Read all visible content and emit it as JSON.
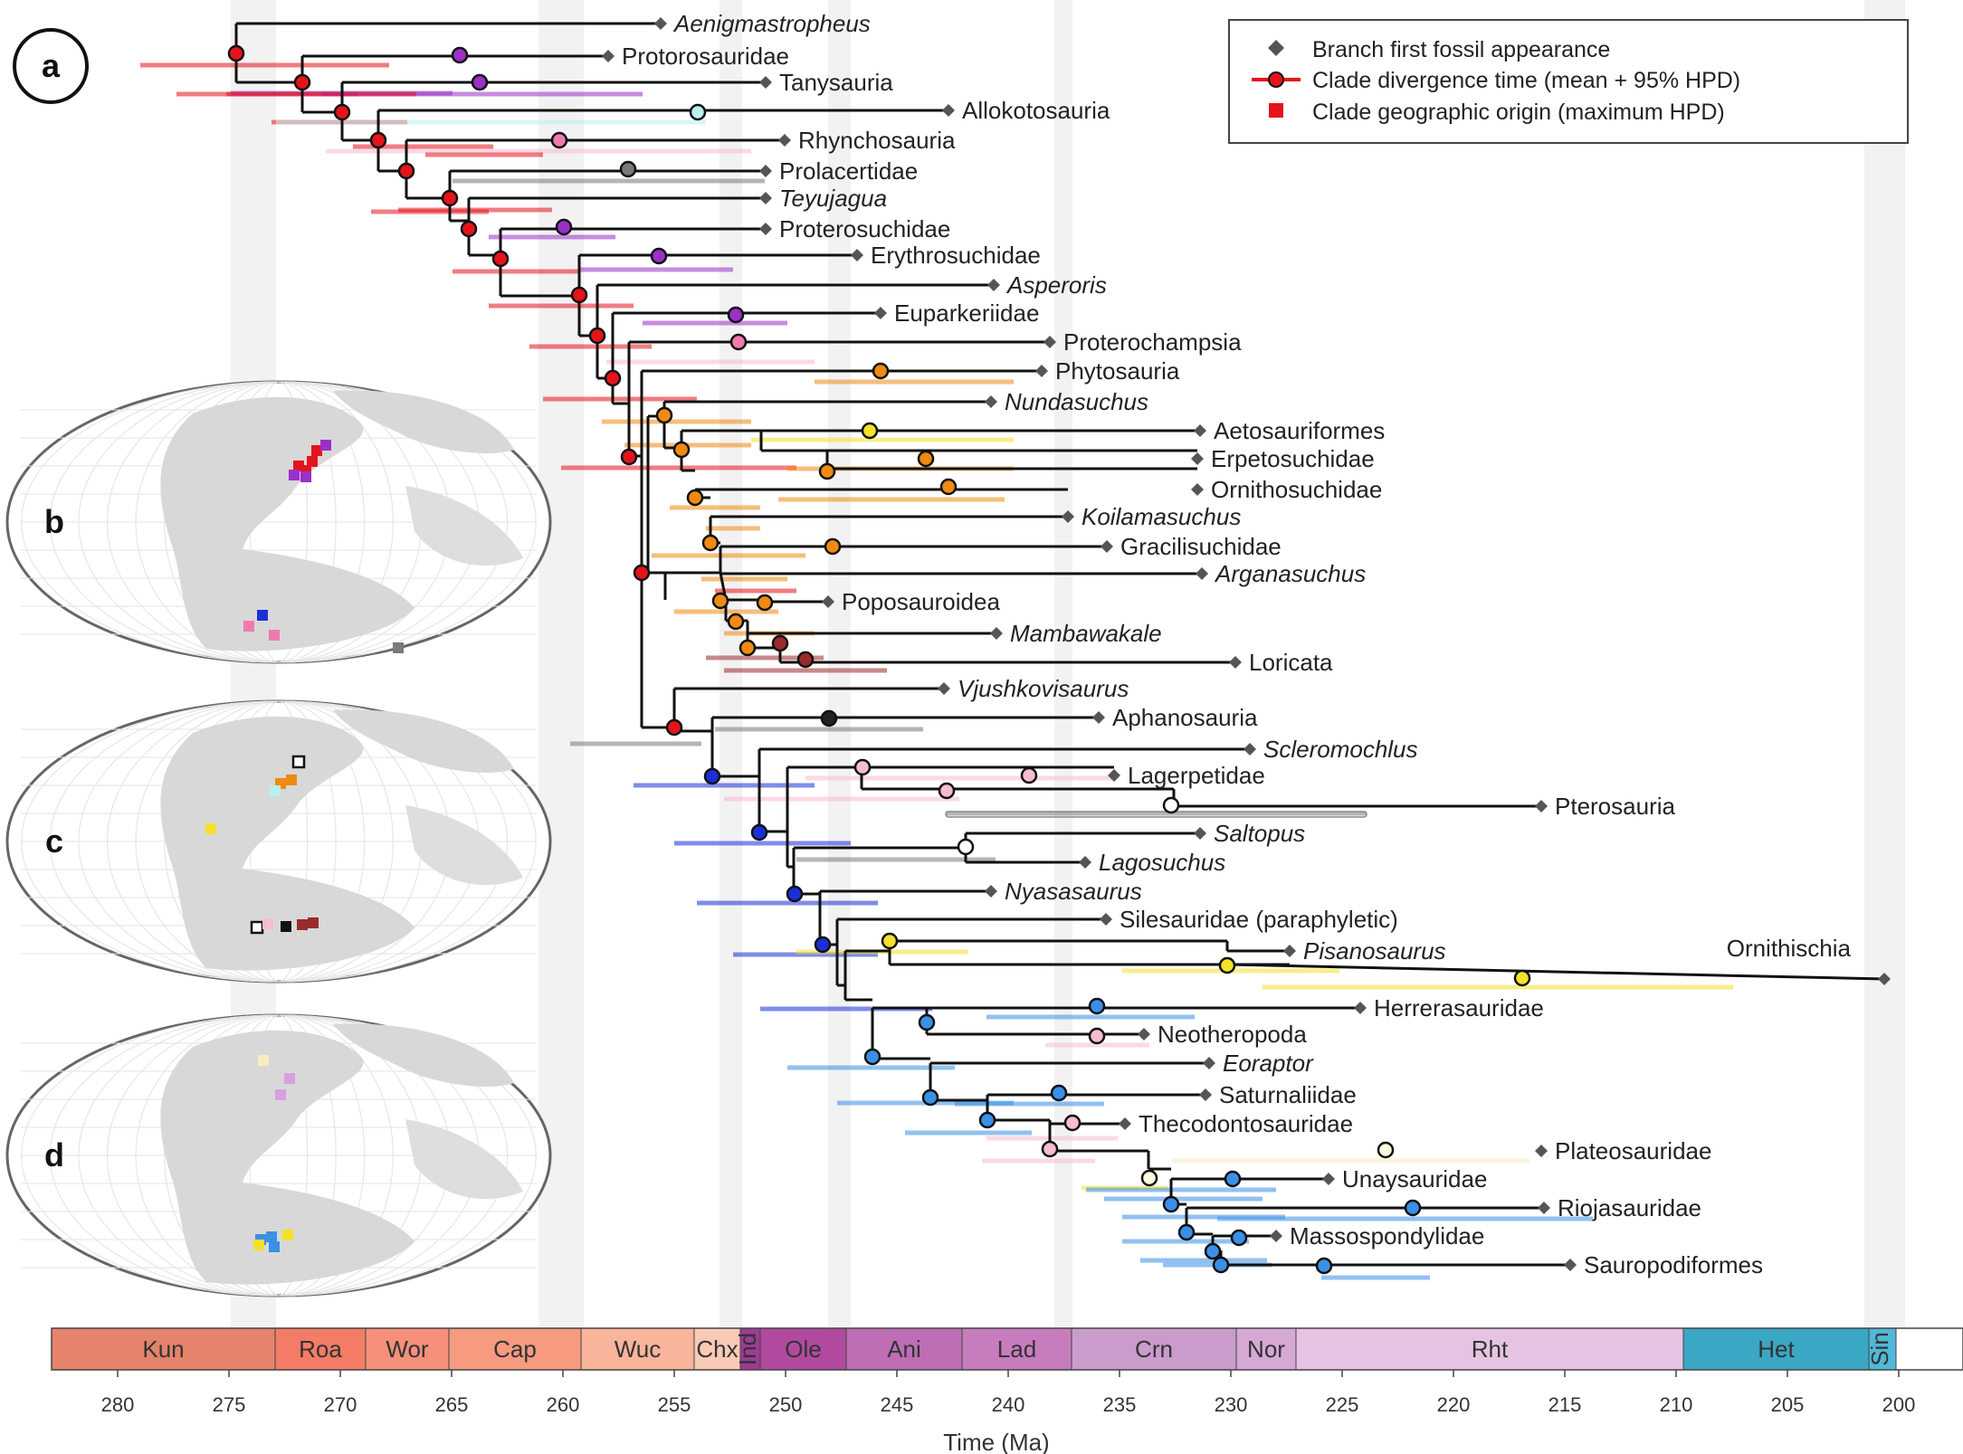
{
  "panels": {
    "a": "a",
    "b": "b",
    "c": "c",
    "d": "d"
  },
  "legend": {
    "fossil": "Branch first fossil appearance",
    "divergence": "Clade divergence time (mean + 95% HPD)",
    "origin": "Clade geographic origin (maximum HPD)"
  },
  "axis": {
    "title": "Time (Ma)",
    "ticks": [
      "280",
      "275",
      "270",
      "265",
      "260",
      "255",
      "250",
      "245",
      "240",
      "235",
      "230",
      "225",
      "220",
      "215",
      "210",
      "205",
      "200"
    ]
  },
  "periods": [
    {
      "label": "Kun",
      "color": "#e5836c"
    },
    {
      "label": "Roa",
      "color": "#f47c66"
    },
    {
      "label": "Wor",
      "color": "#f6907a"
    },
    {
      "label": "Cap",
      "color": "#f69a80"
    },
    {
      "label": "Wuc",
      "color": "#f9b49c"
    },
    {
      "label": "Chx",
      "color": "#fbcab6"
    },
    {
      "label": "Ind",
      "color": "#9d3b94"
    },
    {
      "label": "Ole",
      "color": "#b14a9e"
    },
    {
      "label": "Ani",
      "color": "#bd6eb4"
    },
    {
      "label": "Lad",
      "color": "#c77dbd"
    },
    {
      "label": "Crn",
      "color": "#c99ccb"
    },
    {
      "label": "Nor",
      "color": "#d6a9d4"
    },
    {
      "label": "Rht",
      "color": "#e6c3e3"
    },
    {
      "label": "Het",
      "color": "#3aa7c4"
    },
    {
      "label": "Sin",
      "color": "#50b8d8"
    }
  ],
  "taxa": [
    {
      "label": "Aenigmastropheus",
      "italic": true
    },
    {
      "label": "Protorosauridae",
      "italic": false
    },
    {
      "label": "Tanysauria",
      "italic": false
    },
    {
      "label": "Allokotosauria",
      "italic": false
    },
    {
      "label": "Rhynchosauria",
      "italic": false
    },
    {
      "label": "Prolacertidae",
      "italic": false
    },
    {
      "label": "Teyujagua",
      "italic": true
    },
    {
      "label": "Proterosuchidae",
      "italic": false
    },
    {
      "label": "Erythrosuchidae",
      "italic": false
    },
    {
      "label": "Asperoris",
      "italic": true
    },
    {
      "label": "Euparkeriidae",
      "italic": false
    },
    {
      "label": "Proterochampsia",
      "italic": false
    },
    {
      "label": "Phytosauria",
      "italic": false
    },
    {
      "label": "Nundasuchus",
      "italic": true
    },
    {
      "label": "Aetosauriformes",
      "italic": false
    },
    {
      "label": "Erpetosuchidae",
      "italic": false
    },
    {
      "label": "Ornithosuchidae",
      "italic": false
    },
    {
      "label": "Koilamasuchus",
      "italic": true
    },
    {
      "label": "Gracilisuchidae",
      "italic": false
    },
    {
      "label": "Arganasuchus",
      "italic": true
    },
    {
      "label": "Poposauroidea",
      "italic": false
    },
    {
      "label": "Mambawakale",
      "italic": true
    },
    {
      "label": "Loricata",
      "italic": false
    },
    {
      "label": "Vjushkovisaurus",
      "italic": true
    },
    {
      "label": "Aphanosauria",
      "italic": false
    },
    {
      "label": "Scleromochlus",
      "italic": true
    },
    {
      "label": "Lagerpetidae",
      "italic": false
    },
    {
      "label": "Pterosauria",
      "italic": false
    },
    {
      "label": "Saltopus",
      "italic": true
    },
    {
      "label": "Lagosuchus",
      "italic": true
    },
    {
      "label": "Nyasasaurus",
      "italic": true
    },
    {
      "label": "Silesauridae (paraphyletic)",
      "italic": false
    },
    {
      "label": "Pisanosaurus",
      "italic": true
    },
    {
      "label": "Ornithischia",
      "italic": false
    },
    {
      "label": "Herrerasauridae",
      "italic": false
    },
    {
      "label": "Neotheropoda",
      "italic": false
    },
    {
      "label": "Eoraptor",
      "italic": true
    },
    {
      "label": "Saturnaliidae",
      "italic": false
    },
    {
      "label": "Thecodontosauridae",
      "italic": false
    },
    {
      "label": "Plateosauridae",
      "italic": false
    },
    {
      "label": "Unaysauridae",
      "italic": false
    },
    {
      "label": "Riojasauridae",
      "italic": false
    },
    {
      "label": "Massospondylidae",
      "italic": false
    },
    {
      "label": "Sauropodiformes",
      "italic": false
    }
  ],
  "colors": {
    "branch": "#111111",
    "fossil": "#555555",
    "root": "#e4141b",
    "purple": "#9b30c8",
    "cyan": "#b8f2f0",
    "pink": "#f07ab0",
    "grey": "#7a7a7a",
    "orange": "#f08a12",
    "yellow": "#f4e12a",
    "brown": "#9b2a2a",
    "lightpink": "#f6bcd0",
    "blue": "#1a2fd8",
    "skyblue": "#3a8fe6",
    "paleyellow": "#f6eec0"
  }
}
